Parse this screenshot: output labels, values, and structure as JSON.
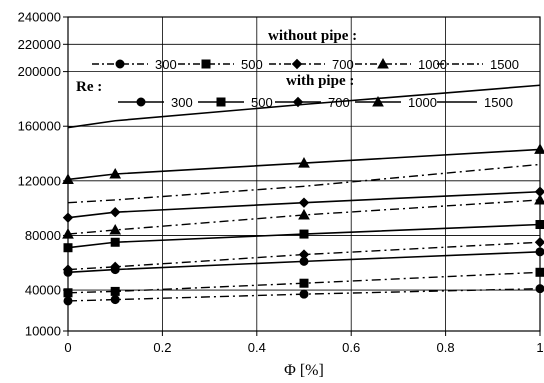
{
  "chart_data": {
    "type": "line",
    "title": "",
    "xlabel": "Φ [%]",
    "ylabel": "",
    "xlim": [
      0,
      1
    ],
    "ylim": [
      10000,
      240000
    ],
    "xticks": [
      "0",
      "0.2",
      "0.4",
      "0.6",
      "0.8",
      "1"
    ],
    "yticks": [
      "10000",
      "40000",
      "80000",
      "120000",
      "160000",
      "200000",
      "220000",
      "240000"
    ],
    "grid": true,
    "legend_position": "top",
    "legend_group_label": "Re :",
    "legend_groups": [
      {
        "title": "without pipe :",
        "style": "dashdot"
      },
      {
        "title": "with pipe :",
        "style": "solid"
      }
    ],
    "series": [
      {
        "group": "without pipe :",
        "name": "300",
        "style": "dashdot",
        "marker": "circle",
        "x": [
          0,
          0.1,
          0.5,
          1
        ],
        "y": [
          32000,
          33000,
          37000,
          41000
        ]
      },
      {
        "group": "without pipe :",
        "name": "500",
        "style": "dashdot",
        "marker": "square",
        "x": [
          0,
          0.1,
          0.5,
          1
        ],
        "y": [
          38000,
          39000,
          45000,
          53000
        ]
      },
      {
        "group": "without pipe :",
        "name": "700",
        "style": "dashdot",
        "marker": "diamond",
        "x": [
          0,
          0.1,
          0.5,
          1
        ],
        "y": [
          55000,
          57000,
          66000,
          75000
        ]
      },
      {
        "group": "without pipe :",
        "name": "1000",
        "style": "dashdot",
        "marker": "triangle",
        "x": [
          0,
          0.1,
          0.5,
          1
        ],
        "y": [
          81000,
          84000,
          95000,
          106000
        ]
      },
      {
        "group": "without pipe :",
        "name": "1500",
        "style": "dashdot",
        "marker": "none",
        "x": [
          0,
          0.1,
          0.5,
          1
        ],
        "y": [
          104000,
          106000,
          116000,
          132000
        ]
      },
      {
        "group": "with pipe :",
        "name": "300",
        "style": "solid",
        "marker": "circle",
        "x": [
          0,
          0.1,
          0.5,
          1
        ],
        "y": [
          53000,
          55000,
          61000,
          68000
        ]
      },
      {
        "group": "with pipe :",
        "name": "500",
        "style": "solid",
        "marker": "square",
        "x": [
          0,
          0.1,
          0.5,
          1
        ],
        "y": [
          71000,
          75000,
          81000,
          88000
        ]
      },
      {
        "group": "with pipe :",
        "name": "700",
        "style": "solid",
        "marker": "diamond",
        "x": [
          0,
          0.1,
          0.5,
          1
        ],
        "y": [
          93000,
          97000,
          104000,
          112000
        ]
      },
      {
        "group": "with pipe :",
        "name": "1000",
        "style": "solid",
        "marker": "triangle",
        "x": [
          0,
          0.1,
          0.5,
          1
        ],
        "y": [
          121000,
          125000,
          133000,
          143000
        ]
      },
      {
        "group": "with pipe :",
        "name": "1500",
        "style": "solid",
        "marker": "none",
        "x": [
          0,
          0.1,
          0.5,
          1
        ],
        "y": [
          159000,
          164000,
          176000,
          190000
        ]
      }
    ]
  }
}
